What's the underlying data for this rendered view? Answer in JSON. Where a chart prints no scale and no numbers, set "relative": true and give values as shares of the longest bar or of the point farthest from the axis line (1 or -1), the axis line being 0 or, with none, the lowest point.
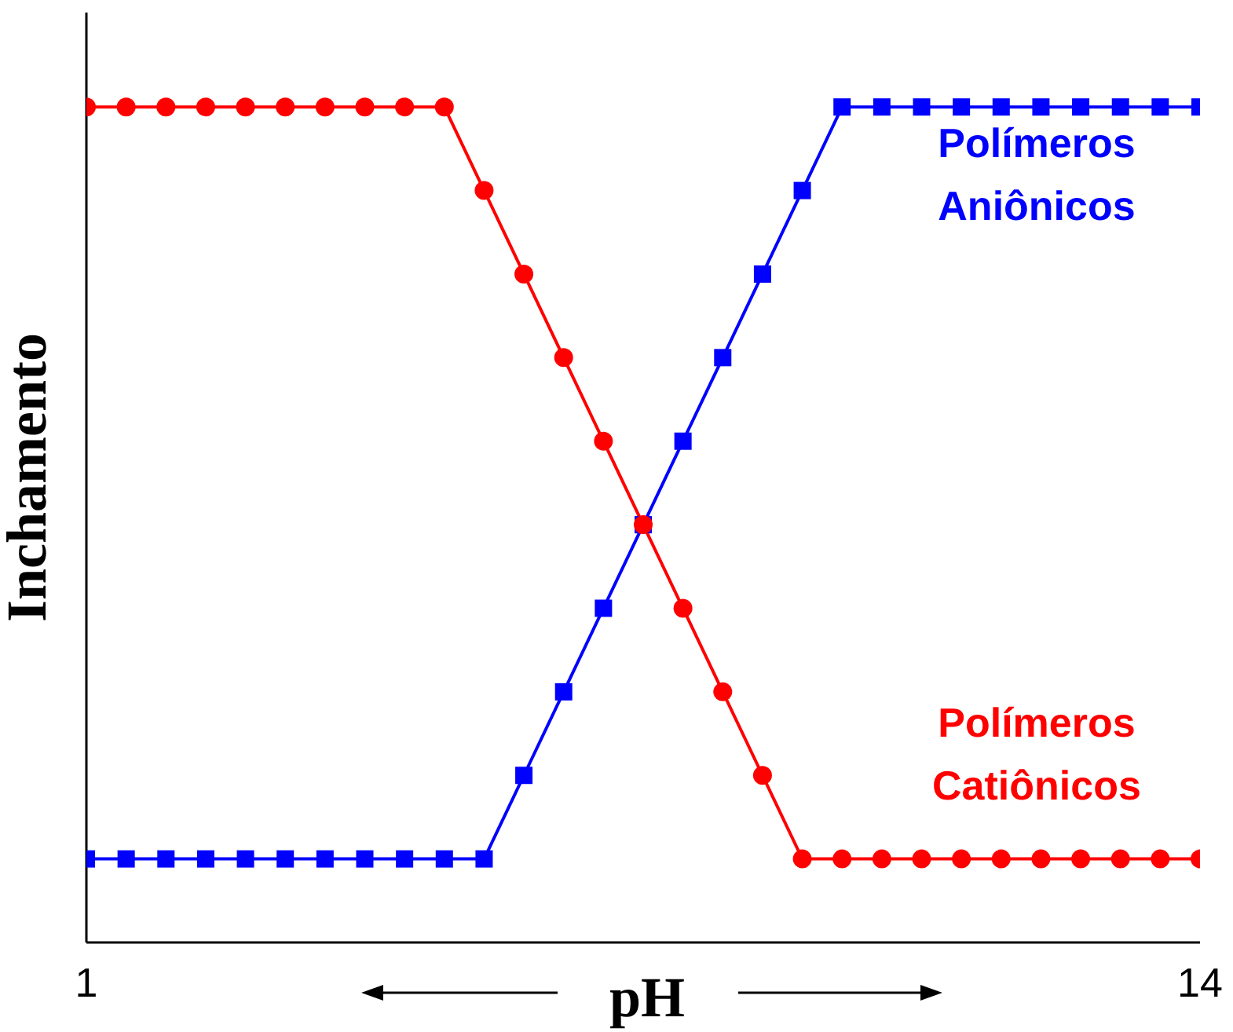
{
  "chart_data": {
    "type": "line",
    "relative": true,
    "xlabel": "pH",
    "ylabel": "Inchamento",
    "categories": [
      "1",
      null,
      null,
      null,
      null,
      null,
      null,
      null,
      null,
      null,
      null,
      null,
      null,
      null,
      null,
      null,
      null,
      null,
      null,
      null,
      null,
      null,
      null,
      null,
      null,
      null,
      null,
      null,
      "14"
    ],
    "grid": false,
    "legend": false,
    "line_style": "solid",
    "series": [
      {
        "name": "Polímeros Catiônicos",
        "color": "#ff0000",
        "marker": "circle",
        "values": [
          1,
          1,
          1,
          1,
          1,
          1,
          1,
          1,
          1,
          1,
          0.9,
          0.8,
          0.7,
          0.6,
          0.5,
          0.4,
          0.3,
          0.2,
          0.1,
          0.1,
          0.1,
          0.1,
          0.1,
          0.1,
          0.1,
          0.1,
          0.1,
          0.1,
          0.1
        ]
      },
      {
        "name": "Polímeros Aniônicos",
        "color": "#0000ff",
        "marker": "square",
        "values": [
          0.1,
          0.1,
          0.1,
          0.1,
          0.1,
          0.1,
          0.1,
          0.1,
          0.1,
          0.1,
          0.1,
          0.2,
          0.3,
          0.4,
          0.5,
          0.6,
          0.7,
          0.8,
          0.9,
          1,
          1,
          1,
          1,
          1,
          1,
          1,
          1,
          1,
          1
        ]
      }
    ]
  }
}
